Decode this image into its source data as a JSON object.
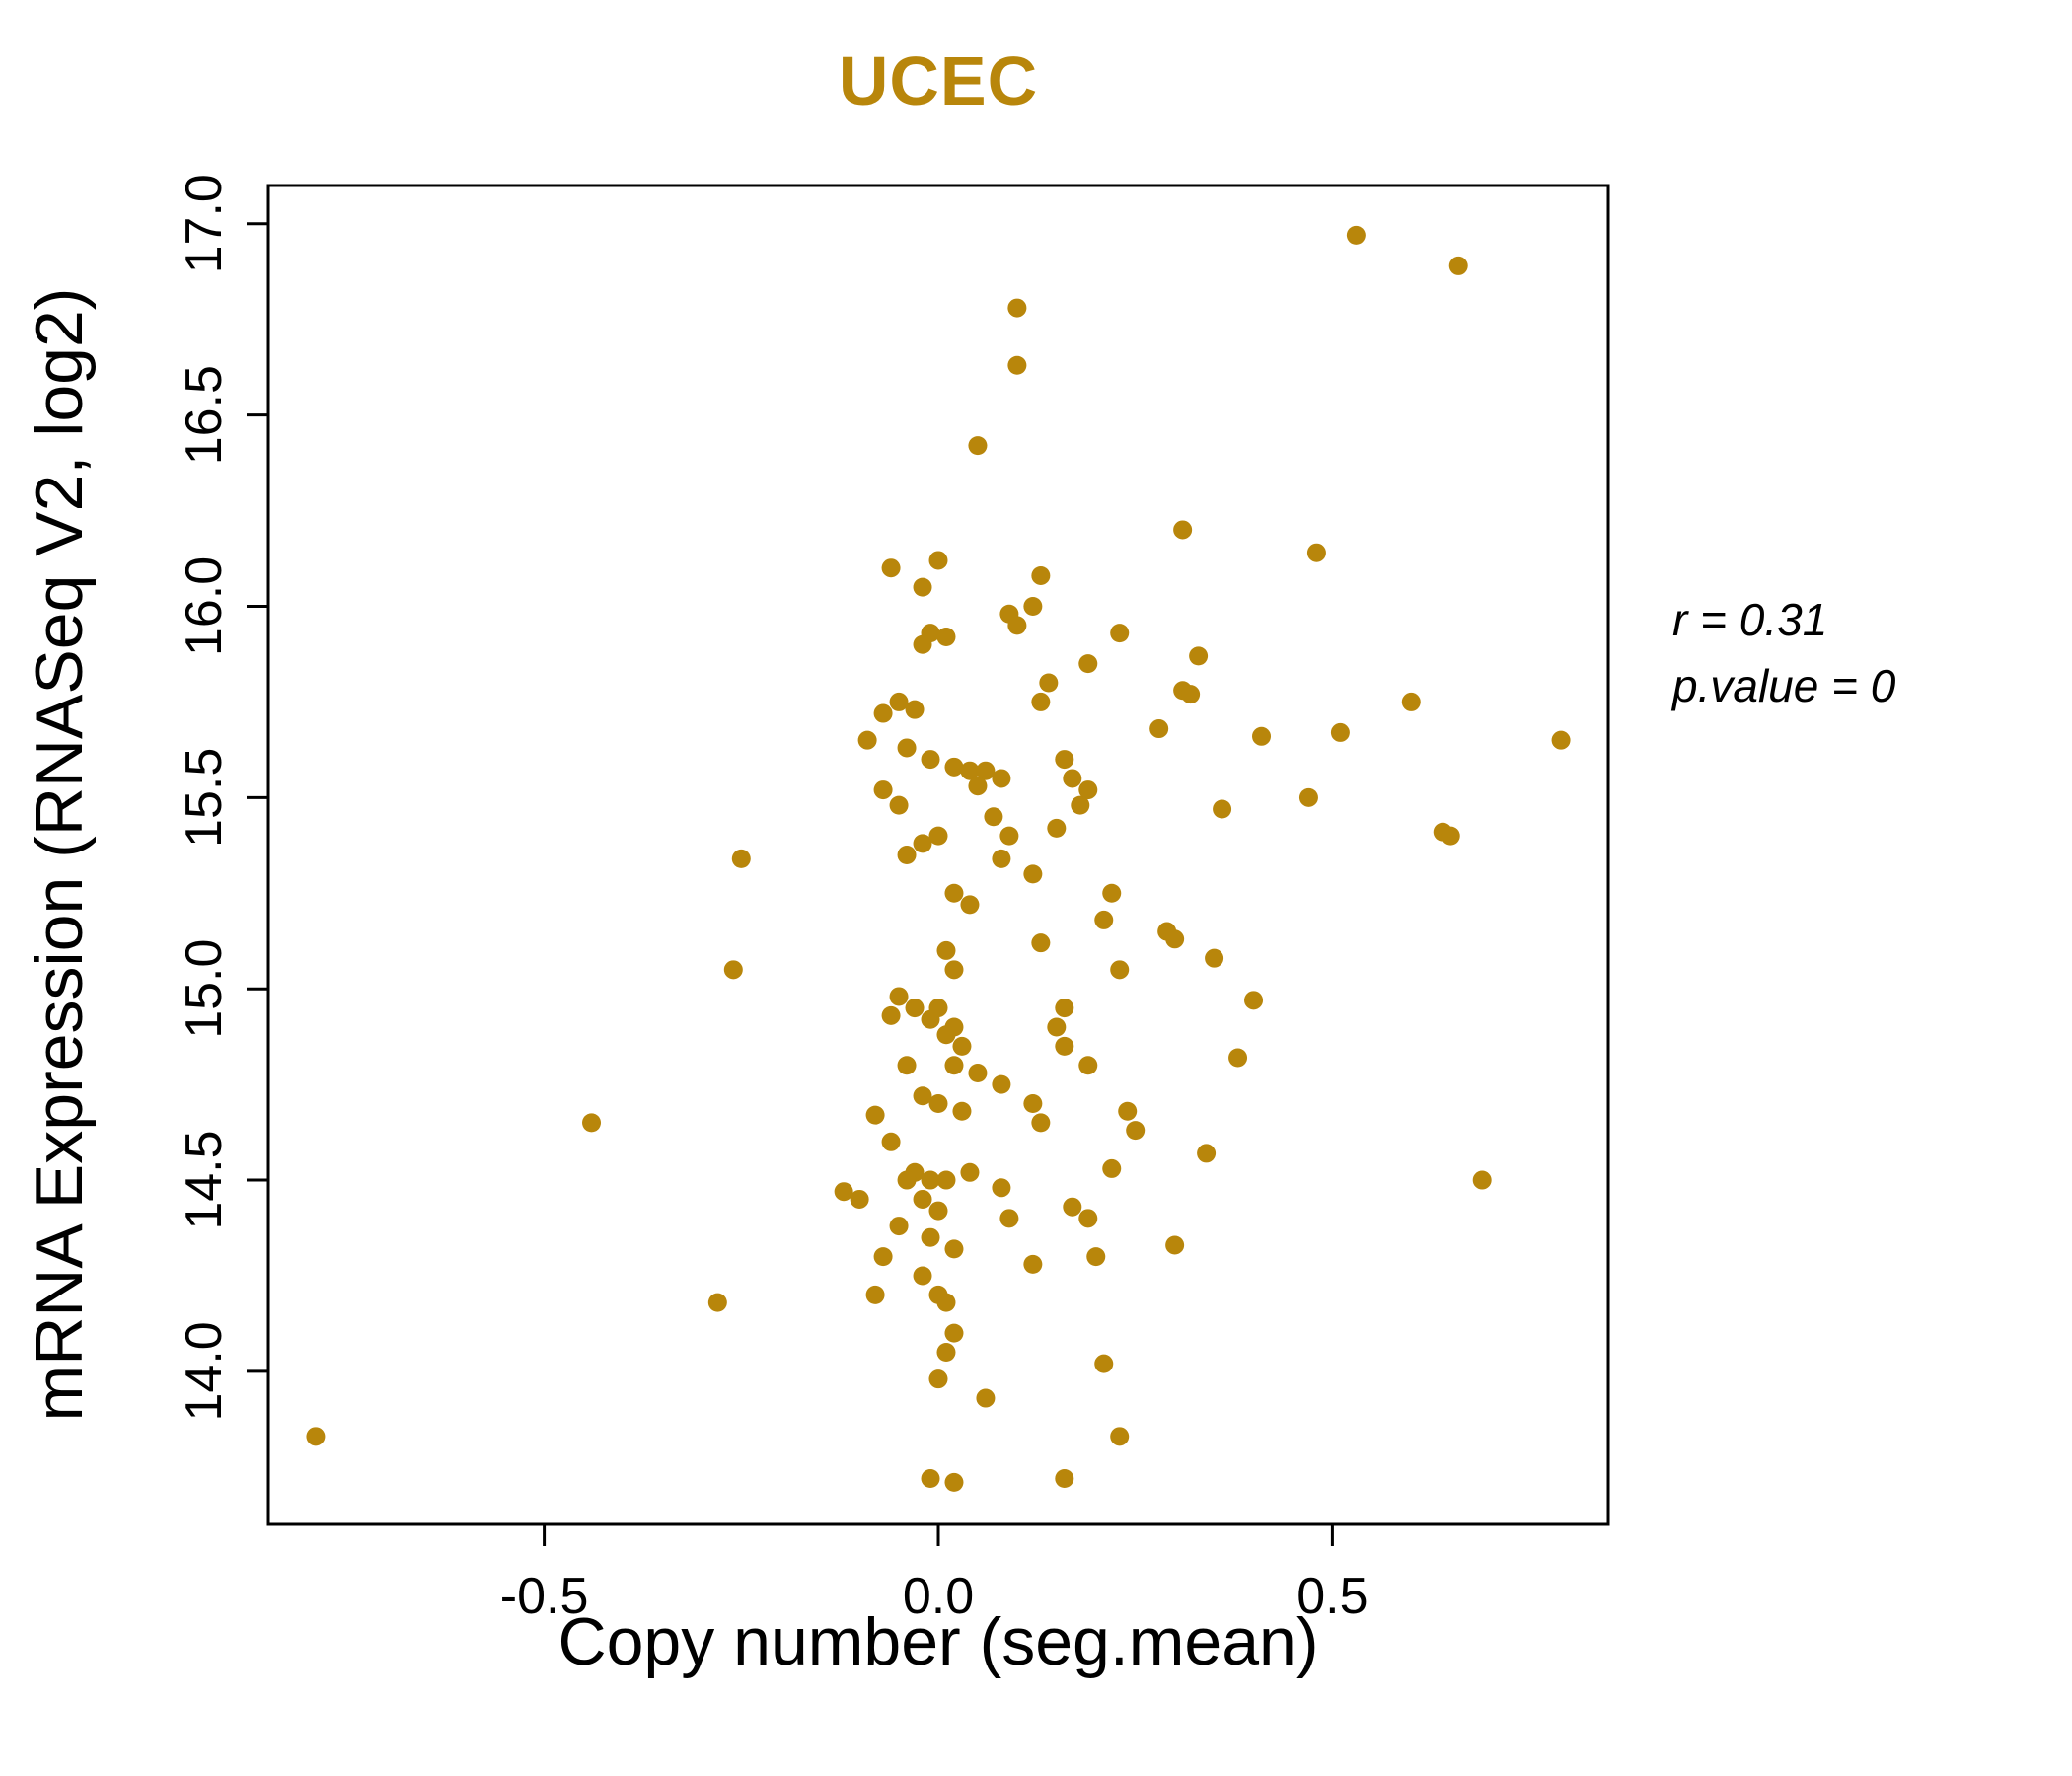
{
  "title": "UCEC",
  "colors": {
    "point": "#B8860B",
    "title": "#B8860B",
    "axis": "#000000"
  },
  "annotation": {
    "line1": "r = 0.31",
    "line2": "p.value = 0"
  },
  "chart_data": {
    "type": "scatter",
    "title": "UCEC",
    "xlabel": "Copy number (seg.mean)",
    "ylabel": "mRNA Expression (RNASeq V2, log2)",
    "xlim": [
      -0.85,
      0.85
    ],
    "ylim": [
      13.6,
      17.1
    ],
    "xticks": [
      -0.5,
      0.0,
      0.5
    ],
    "xtick_labels": [
      "-0.5",
      "0.0",
      "0.5"
    ],
    "yticks": [
      14.0,
      14.5,
      15.0,
      15.5,
      16.0,
      16.5,
      17.0
    ],
    "ytick_labels": [
      "14.0",
      "14.5",
      "15.0",
      "15.5",
      "16.0",
      "16.5",
      "17.0"
    ],
    "grid": false,
    "legend": null,
    "annotations": [
      "r = 0.31",
      "p.value = 0"
    ],
    "correlation_r": 0.31,
    "p_value": 0,
    "points": [
      [
        -0.79,
        13.83
      ],
      [
        -0.44,
        14.65
      ],
      [
        -0.28,
        14.18
      ],
      [
        -0.26,
        15.05
      ],
      [
        -0.25,
        15.34
      ],
      [
        0.53,
        16.97
      ],
      [
        0.66,
        16.89
      ],
      [
        0.1,
        16.78
      ],
      [
        0.1,
        16.63
      ],
      [
        0.05,
        16.42
      ],
      [
        0.31,
        16.2
      ],
      [
        0.48,
        16.14
      ],
      [
        -0.06,
        16.1
      ],
      [
        0.0,
        16.12
      ],
      [
        -0.02,
        16.05
      ],
      [
        0.13,
        16.08
      ],
      [
        0.12,
        16.0
      ],
      [
        0.09,
        15.98
      ],
      [
        0.1,
        15.95
      ],
      [
        -0.01,
        15.93
      ],
      [
        -0.02,
        15.9
      ],
      [
        0.01,
        15.92
      ],
      [
        0.23,
        15.93
      ],
      [
        0.33,
        15.87
      ],
      [
        0.19,
        15.85
      ],
      [
        0.14,
        15.8
      ],
      [
        0.13,
        15.75
      ],
      [
        0.31,
        15.78
      ],
      [
        0.32,
        15.77
      ],
      [
        -0.05,
        15.75
      ],
      [
        -0.03,
        15.73
      ],
      [
        -0.07,
        15.72
      ],
      [
        0.6,
        15.75
      ],
      [
        0.28,
        15.68
      ],
      [
        0.41,
        15.66
      ],
      [
        0.79,
        15.65
      ],
      [
        0.51,
        15.67
      ],
      [
        -0.09,
        15.65
      ],
      [
        -0.04,
        15.63
      ],
      [
        -0.01,
        15.6
      ],
      [
        0.02,
        15.58
      ],
      [
        0.04,
        15.57
      ],
      [
        0.06,
        15.57
      ],
      [
        0.08,
        15.55
      ],
      [
        0.05,
        15.53
      ],
      [
        0.16,
        15.6
      ],
      [
        0.17,
        15.55
      ],
      [
        0.19,
        15.52
      ],
      [
        0.18,
        15.48
      ],
      [
        0.15,
        15.42
      ],
      [
        0.36,
        15.47
      ],
      [
        0.47,
        15.5
      ],
      [
        0.64,
        15.41
      ],
      [
        0.65,
        15.4
      ],
      [
        -0.07,
        15.52
      ],
      [
        -0.05,
        15.48
      ],
      [
        0.07,
        15.45
      ],
      [
        0.09,
        15.4
      ],
      [
        -0.02,
        15.38
      ],
      [
        -0.04,
        15.35
      ],
      [
        0.0,
        15.4
      ],
      [
        0.08,
        15.34
      ],
      [
        0.12,
        15.3
      ],
      [
        0.02,
        15.25
      ],
      [
        0.04,
        15.22
      ],
      [
        0.22,
        15.25
      ],
      [
        0.21,
        15.18
      ],
      [
        0.13,
        15.12
      ],
      [
        0.29,
        15.15
      ],
      [
        0.35,
        15.08
      ],
      [
        0.01,
        15.1
      ],
      [
        0.02,
        15.05
      ],
      [
        0.23,
        15.05
      ],
      [
        0.4,
        14.97
      ],
      [
        0.16,
        14.95
      ],
      [
        -0.05,
        14.98
      ],
      [
        -0.03,
        14.95
      ],
      [
        -0.01,
        14.92
      ],
      [
        0.0,
        14.95
      ],
      [
        0.02,
        14.9
      ],
      [
        0.01,
        14.88
      ],
      [
        0.03,
        14.85
      ],
      [
        -0.06,
        14.93
      ],
      [
        0.08,
        14.75
      ],
      [
        0.05,
        14.78
      ],
      [
        0.02,
        14.8
      ],
      [
        -0.04,
        14.8
      ],
      [
        0.15,
        14.9
      ],
      [
        0.16,
        14.85
      ],
      [
        0.19,
        14.8
      ],
      [
        0.38,
        14.82
      ],
      [
        0.3,
        15.13
      ],
      [
        -0.02,
        14.72
      ],
      [
        0.0,
        14.7
      ],
      [
        0.03,
        14.68
      ],
      [
        0.12,
        14.7
      ],
      [
        0.13,
        14.65
      ],
      [
        0.24,
        14.68
      ],
      [
        0.25,
        14.63
      ],
      [
        -0.08,
        14.67
      ],
      [
        -0.06,
        14.6
      ],
      [
        0.34,
        14.57
      ],
      [
        0.22,
        14.53
      ],
      [
        0.04,
        14.52
      ],
      [
        -0.03,
        14.52
      ],
      [
        -0.04,
        14.5
      ],
      [
        -0.01,
        14.5
      ],
      [
        0.01,
        14.5
      ],
      [
        -0.12,
        14.47
      ],
      [
        -0.1,
        14.45
      ],
      [
        -0.02,
        14.45
      ],
      [
        0.0,
        14.42
      ],
      [
        0.08,
        14.48
      ],
      [
        0.09,
        14.4
      ],
      [
        0.69,
        14.5
      ],
      [
        0.17,
        14.43
      ],
      [
        -0.05,
        14.38
      ],
      [
        -0.01,
        14.35
      ],
      [
        0.02,
        14.32
      ],
      [
        0.19,
        14.4
      ],
      [
        0.2,
        14.3
      ],
      [
        0.12,
        14.28
      ],
      [
        0.3,
        14.33
      ],
      [
        -0.07,
        14.3
      ],
      [
        -0.02,
        14.25
      ],
      [
        0.0,
        14.2
      ],
      [
        0.01,
        14.18
      ],
      [
        -0.08,
        14.2
      ],
      [
        0.02,
        14.1
      ],
      [
        0.01,
        14.05
      ],
      [
        0.0,
        13.98
      ],
      [
        0.06,
        13.93
      ],
      [
        0.21,
        14.02
      ],
      [
        -0.01,
        13.72
      ],
      [
        0.02,
        13.71
      ],
      [
        0.16,
        13.72
      ],
      [
        0.23,
        13.83
      ]
    ]
  }
}
